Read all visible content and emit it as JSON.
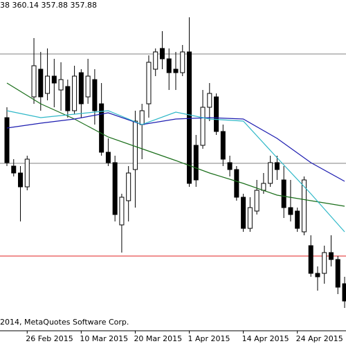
{
  "chart_data": {
    "type": "candlestick",
    "header": "38 360.14 357.88 357.88",
    "copyright": "2014, MetaQuotes Software Corp.",
    "categories": [
      null,
      null,
      null,
      "26 Feb 2015",
      null,
      null,
      null,
      null,
      null,
      null,
      null,
      "10 Mar 2015",
      null,
      null,
      null,
      null,
      null,
      null,
      null,
      "20 Mar 2015",
      null,
      null,
      null,
      null,
      null,
      null,
      null,
      "1 Apr 2015",
      null,
      null,
      null,
      null,
      null,
      null,
      null,
      "14 Apr 2015",
      null,
      null,
      null,
      null,
      null,
      null,
      null,
      "24 Apr 2015",
      null,
      null,
      null,
      null,
      null,
      null,
      null
    ],
    "open": [
      386,
      379,
      378,
      376,
      389,
      393,
      389.5,
      392,
      390,
      390.5,
      387,
      392.5,
      389,
      391.5,
      388,
      381,
      379.5,
      370.5,
      374,
      378.5,
      385,
      388,
      393,
      396,
      394.5,
      393,
      392.5,
      395.5,
      382,
      382,
      387.5,
      389,
      384,
      379.5,
      378.5,
      374.5,
      370,
      372.5,
      375.5,
      376.5,
      379.5,
      377,
      373,
      372.5,
      369.5,
      367.5,
      363.5,
      363.5,
      366.5,
      365.5,
      362
    ],
    "high": [
      387.5,
      380,
      379,
      380.5,
      397.5,
      395.5,
      396,
      394.5,
      394,
      391.5,
      393.5,
      393,
      394.5,
      393,
      391,
      383,
      380.5,
      375,
      379,
      387,
      388,
      395,
      396,
      398.5,
      396,
      395.5,
      396.5,
      400.5,
      383.5,
      390,
      391,
      389.5,
      385,
      380.5,
      379,
      375,
      374.5,
      377,
      378,
      380.5,
      380.5,
      379,
      377,
      373,
      377.5,
      369,
      364.5,
      367.5,
      369,
      366,
      363
    ],
    "low": [
      379,
      377.5,
      371,
      375.5,
      388,
      387,
      388.5,
      387.5,
      387,
      386,
      386.5,
      386,
      388,
      385,
      380.5,
      379,
      371,
      366.5,
      371,
      373,
      380,
      386,
      392,
      393,
      390,
      390,
      392,
      376,
      376,
      381.5,
      385.5,
      383.5,
      379,
      377.5,
      374,
      369.5,
      369.5,
      372,
      375,
      376,
      377,
      371.5,
      371,
      369.5,
      369,
      363,
      361,
      362,
      364.5,
      360.5,
      358.5
    ],
    "close": [
      379.5,
      378,
      376,
      380,
      393.5,
      389,
      392,
      391,
      391.5,
      387,
      392,
      388,
      392,
      387,
      381,
      379.5,
      372,
      374.5,
      378,
      385.5,
      387,
      394,
      395.5,
      394.5,
      392.5,
      392.5,
      395.5,
      376.5,
      377,
      387.5,
      389.5,
      384,
      380,
      378.5,
      374.5,
      370,
      373,
      375.5,
      376.5,
      379.5,
      378.5,
      373,
      372,
      370,
      377,
      363.5,
      363,
      366.5,
      365.5,
      361.5,
      359.5
    ],
    "overlays": [
      {
        "color": "#1a6e1a",
        "x": [
          0,
          5,
          10,
          15,
          20,
          25,
          30,
          35,
          40,
          45,
          50
        ],
        "values": [
          391,
          388,
          385.8,
          383.2,
          381.5,
          379.8,
          378,
          376.5,
          374.8,
          374,
          373.2
        ]
      },
      {
        "color": "#1c1cb0",
        "x": [
          0,
          5,
          10,
          15,
          20,
          25,
          30,
          35,
          40,
          45,
          50
        ],
        "values": [
          384.5,
          385.2,
          385.8,
          386.7,
          385,
          385.8,
          386,
          385.8,
          383,
          379.5,
          376.8
        ]
      },
      {
        "color": "#2fb8c8",
        "x": [
          0,
          5,
          10,
          15,
          20,
          25,
          30,
          35,
          40,
          45,
          50
        ],
        "values": [
          387,
          386,
          386.5,
          387,
          385,
          386.8,
          385.8,
          385.5,
          380.2,
          375,
          369.5
        ]
      }
    ],
    "hlines": [
      {
        "value": 395.2,
        "color": "#808080"
      },
      {
        "value": 379.4,
        "color": "#808080"
      },
      {
        "value": 366,
        "color": "#e02020"
      }
    ],
    "ylim": [
      355.2,
      403
    ]
  }
}
